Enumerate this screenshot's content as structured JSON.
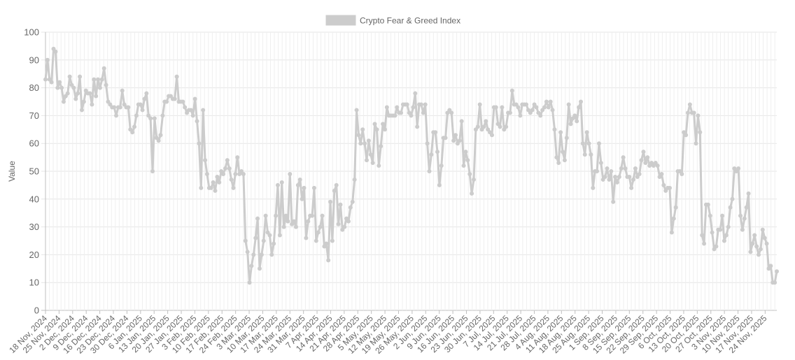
{
  "chart_data": {
    "type": "line",
    "title": "",
    "xlabel": "",
    "ylabel": "Value",
    "ylim": [
      0,
      100
    ],
    "yticks": [
      0,
      10,
      20,
      30,
      40,
      50,
      60,
      70,
      80,
      90,
      100
    ],
    "grid": true,
    "legend_position": "top-center",
    "x_start": "2024-11-18",
    "x_end": "2025-11-30",
    "x_tick_labels": [
      "18 Nov, 2024",
      "25 Nov, 2024",
      "2 Dec, 2024",
      "9 Dec, 2024",
      "16 Dec, 2024",
      "23 Dec, 2024",
      "30 Dec, 2024",
      "6 Jan, 2025",
      "13 Jan, 2025",
      "20 Jan, 2025",
      "27 Jan, 2025",
      "3 Feb, 2025",
      "10 Feb, 2025",
      "17 Feb, 2025",
      "24 Feb, 2025",
      "3 Mar, 2025",
      "10 Mar, 2025",
      "17 Mar, 2025",
      "24 Mar, 2025",
      "31 Mar, 2025",
      "7 Apr, 2025",
      "14 Apr, 2025",
      "21 Apr, 2025",
      "28 Apr, 2025",
      "5 May, 2025",
      "12 May, 2025",
      "19 May, 2025",
      "26 May, 2025",
      "2 Jun, 2025",
      "9 Jun, 2025",
      "16 Jun, 2025",
      "23 Jun, 2025",
      "30 Jun, 2025",
      "7 Jul, 2025",
      "14 Jul, 2025",
      "21 Jul, 2025",
      "28 Jul, 2025",
      "4 Aug, 2025",
      "11 Aug, 2025",
      "18 Aug, 2025",
      "25 Aug, 2025",
      "1 Sep, 2025",
      "8 Sep, 2025",
      "15 Sep, 2025",
      "22 Sep, 2025",
      "29 Sep, 2025",
      "6 Oct, 2025",
      "13 Oct, 2025",
      "20 Oct, 2025",
      "27 Oct, 2025",
      "3 Nov, 2025",
      "10 Nov, 2025",
      "17 Nov, 2025",
      "24 Nov, 2025"
    ],
    "series": [
      {
        "name": "Crypto Fear & Greed Index",
        "color": "#cccccc",
        "values": [
          83,
          90,
          83,
          82,
          94,
          93,
          80,
          82,
          80,
          75,
          77,
          78,
          84,
          81,
          80,
          76,
          78,
          84,
          72,
          75,
          79,
          78,
          78,
          74,
          83,
          77,
          83,
          80,
          83,
          87,
          81,
          75,
          74,
          73,
          73,
          70,
          73,
          73,
          79,
          74,
          73,
          73,
          65,
          64,
          66,
          70,
          74,
          74,
          72,
          76,
          78,
          70,
          69,
          50,
          69,
          62,
          61,
          63,
          70,
          75,
          75,
          77,
          77,
          76,
          76,
          84,
          75,
          75,
          75,
          73,
          71,
          72,
          72,
          70,
          76,
          68,
          60,
          44,
          72,
          54,
          49,
          44,
          44,
          46,
          43,
          48,
          46,
          50,
          49,
          51,
          54,
          51,
          47,
          44,
          49,
          55,
          49,
          50,
          49,
          25,
          21,
          10,
          16,
          20,
          26,
          33,
          15,
          20,
          25,
          34,
          28,
          27,
          20,
          24,
          34,
          45,
          27,
          46,
          30,
          34,
          32,
          49,
          31,
          32,
          30,
          45,
          47,
          40,
          44,
          26,
          32,
          34,
          34,
          44,
          25,
          28,
          30,
          34,
          23,
          24,
          18,
          39,
          25,
          43,
          45,
          31,
          38,
          29,
          30,
          33,
          32,
          37,
          39,
          47,
          72,
          63,
          60,
          65,
          60,
          54,
          61,
          56,
          53,
          67,
          65,
          52,
          59,
          67,
          65,
          73,
          70,
          70,
          70,
          70,
          73,
          71,
          71,
          74,
          74,
          74,
          71,
          70,
          73,
          78,
          66,
          74,
          74,
          71,
          74,
          60,
          50,
          56,
          64,
          64,
          57,
          45,
          52,
          62,
          62,
          71,
          72,
          71,
          61,
          63,
          60,
          61,
          68,
          52,
          57,
          54,
          49,
          42,
          47,
          65,
          66,
          74,
          65,
          66,
          68,
          65,
          64,
          63,
          73,
          73,
          67,
          66,
          73,
          65,
          66,
          71,
          71,
          79,
          74,
          74,
          73,
          70,
          74,
          74,
          74,
          72,
          71,
          72,
          74,
          73,
          71,
          70,
          72,
          73,
          75,
          73,
          75,
          72,
          65,
          55,
          53,
          64,
          57,
          54,
          62,
          74,
          67,
          69,
          70,
          68,
          73,
          75,
          60,
          56,
          64,
          60,
          56,
          44,
          50,
          50,
          60,
          53,
          47,
          48,
          51,
          47,
          50,
          39,
          48,
          46,
          48,
          51,
          55,
          51,
          48,
          48,
          44,
          47,
          51,
          48,
          49,
          54,
          57,
          53,
          55,
          52,
          53,
          52,
          53,
          52,
          48,
          49,
          45,
          43,
          44,
          44,
          28,
          33,
          37,
          50,
          50,
          49,
          64,
          63,
          71,
          74,
          71,
          71,
          60,
          70,
          64,
          27,
          24,
          38,
          38,
          34,
          28,
          22,
          23,
          29,
          29,
          34,
          25,
          27,
          30,
          37,
          40,
          51,
          50,
          51,
          34,
          29,
          33,
          37,
          42,
          21,
          24,
          27,
          23,
          20,
          22,
          29,
          26,
          24,
          15,
          16,
          10,
          10,
          14
        ]
      }
    ]
  }
}
